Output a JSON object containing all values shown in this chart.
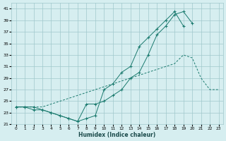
{
  "xlabel": "Humidex (Indice chaleur)",
  "x": [
    0,
    1,
    2,
    3,
    4,
    5,
    6,
    7,
    8,
    9,
    10,
    11,
    12,
    13,
    14,
    15,
    16,
    17,
    18,
    19,
    20,
    21,
    22,
    23
  ],
  "line1": [
    24,
    24,
    23.5,
    23.5,
    23,
    22.5,
    22,
    21.5,
    22,
    22.5,
    27,
    28,
    30,
    31,
    34.5,
    36,
    37.5,
    39,
    40.5,
    38,
    null,
    null,
    null,
    null
  ],
  "line2": [
    24,
    24,
    24,
    23.5,
    23,
    22.5,
    22,
    21.5,
    24.5,
    24.5,
    25,
    26,
    27,
    29,
    30,
    33,
    36.5,
    38,
    40,
    40.5,
    38.5,
    null,
    null,
    null
  ],
  "line3": [
    24,
    24,
    24,
    24,
    24.5,
    25,
    25.5,
    26,
    26.5,
    27,
    27.5,
    28,
    28.5,
    29,
    29.5,
    30,
    30.5,
    31,
    31.5,
    33,
    32.5,
    29,
    27,
    27
  ],
  "color": "#1a7a6e",
  "bg_color": "#d6eef0",
  "grid_color": "#a0c8cc",
  "ylim": [
    21,
    42
  ],
  "xlim": [
    -0.5,
    23.5
  ],
  "yticks": [
    21,
    23,
    25,
    27,
    29,
    31,
    33,
    35,
    37,
    39,
    41
  ],
  "xticks": [
    0,
    1,
    2,
    3,
    4,
    5,
    6,
    7,
    8,
    9,
    10,
    11,
    12,
    13,
    14,
    15,
    16,
    17,
    18,
    19,
    20,
    21,
    22,
    23
  ]
}
